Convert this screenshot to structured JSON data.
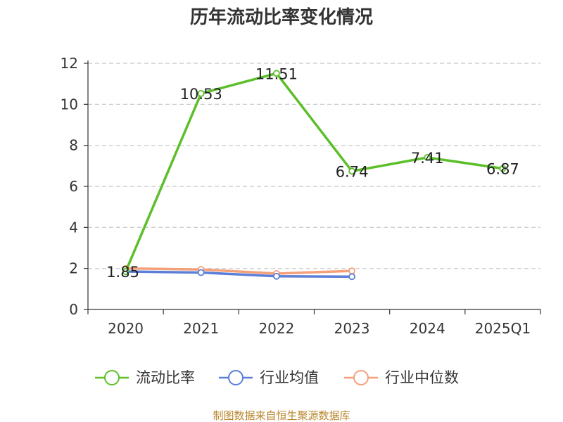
{
  "chart_data": {
    "type": "line",
    "title": "历年流动比率变化情况",
    "categories": [
      "2020",
      "2021",
      "2022",
      "2023",
      "2024",
      "2025Q1"
    ],
    "ylim": [
      0,
      12
    ],
    "yticks": [
      "0",
      "2",
      "4",
      "6",
      "8",
      "10",
      "12"
    ],
    "grid": true,
    "legend_position": "bottom",
    "series": [
      {
        "name": "流动比率",
        "color": "#5cbf2a",
        "values": [
          1.85,
          10.53,
          11.51,
          6.74,
          7.41,
          6.87
        ],
        "labels": [
          "1.85",
          "10.53",
          "11.51",
          "6.74",
          "7.41",
          "6.87"
        ]
      },
      {
        "name": "行业均值",
        "color": "#5b7fd8",
        "values": [
          1.85,
          1.8,
          1.62,
          1.6,
          null,
          null
        ]
      },
      {
        "name": "行业中位数",
        "color": "#f4a07a",
        "values": [
          2.0,
          1.95,
          1.75,
          1.88,
          null,
          null
        ]
      }
    ],
    "source": "制图数据来自恒生聚源数据库"
  }
}
